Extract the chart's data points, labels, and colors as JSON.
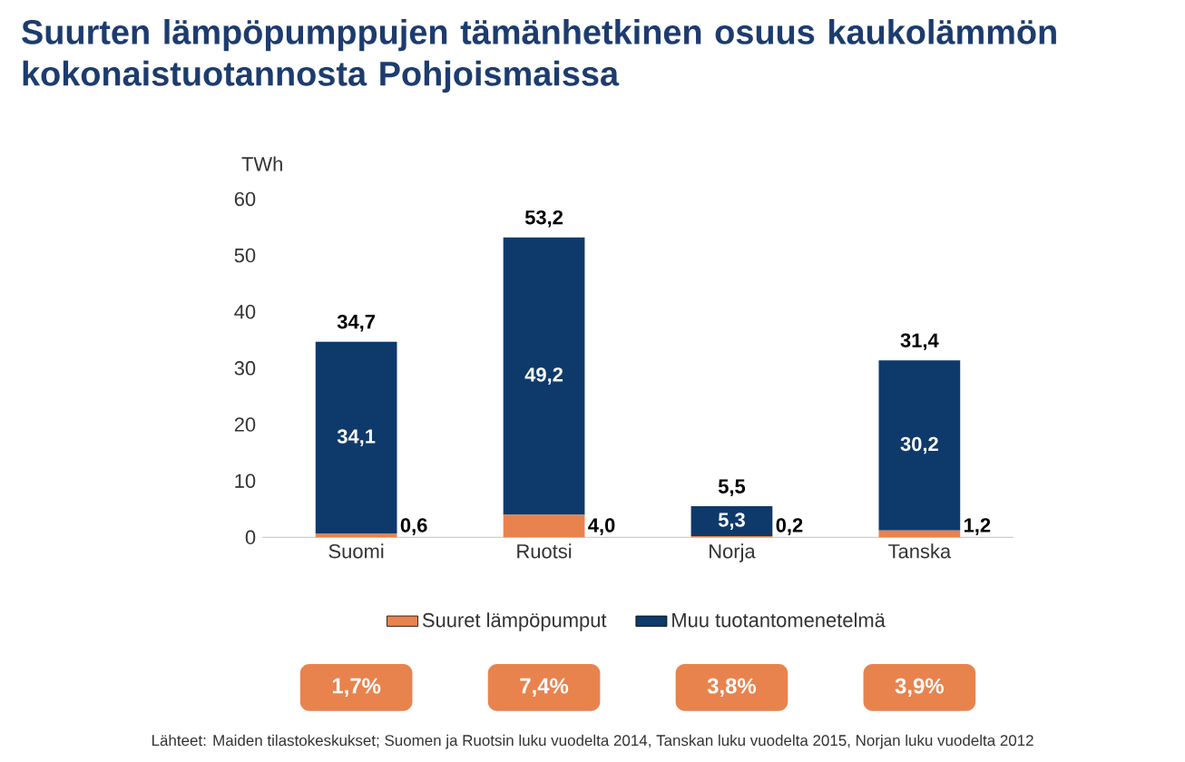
{
  "chart_data": {
    "type": "bar",
    "stacked": true,
    "title": "Suurten lämpöpumppujen tämänhetkinen osuus kaukolämmön kokonaistuotannosta Pohjoismaissa",
    "ylabel": "TWh",
    "categories": [
      "Suomi",
      "Ruotsi",
      "Norja",
      "Tanska"
    ],
    "series": [
      {
        "name": "Suuret lämpöpumput",
        "color": "#e8834e",
        "values": [
          0.6,
          4.0,
          0.2,
          1.2
        ],
        "value_labels": [
          "0,6",
          "4,0",
          "0,2",
          "1,2"
        ]
      },
      {
        "name": "Muu tuotantomenetelmä",
        "color": "#0e3a6b",
        "values": [
          34.1,
          49.2,
          5.3,
          30.2
        ],
        "value_labels": [
          "34,1",
          "49,2",
          "5,3",
          "30,2"
        ]
      }
    ],
    "totals": [
      "34,7",
      "53,2",
      "5,5",
      "31,4"
    ],
    "ylim": [
      0,
      60
    ],
    "yticks": [
      0,
      10,
      20,
      30,
      40,
      50,
      60
    ],
    "grid": false,
    "legend": "bottom",
    "annotations": [
      "1,7%",
      "7,4%",
      "3,8%",
      "3,9%",
      "Lähteet: Maiden tilastokeskukset; Suomen ja Ruotsin luku vuodelta 2014, Tanskan luku vuodelta 2015, Norjan luku vuodelta 2012"
    ]
  }
}
